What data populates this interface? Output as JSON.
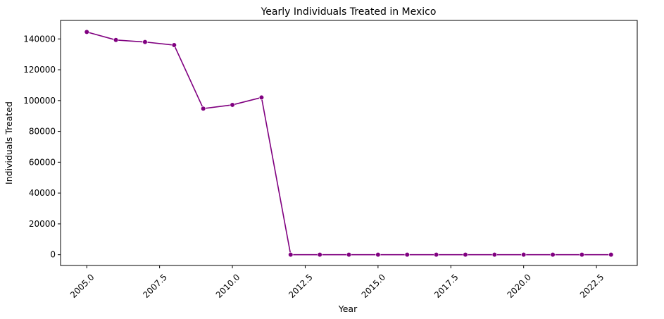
{
  "chart_data": {
    "type": "line",
    "title": "Yearly Individuals Treated in Mexico",
    "xlabel": "Year",
    "ylabel": "Individuals Treated",
    "xlim": [
      2004.1,
      2023.9
    ],
    "ylim": [
      -7000,
      152000
    ],
    "x_ticks": [
      2005.0,
      2007.5,
      2010.0,
      2012.5,
      2015.0,
      2017.5,
      2020.0,
      2022.5
    ],
    "x_tick_labels": [
      "2005.0",
      "2007.5",
      "2010.0",
      "2012.5",
      "2015.0",
      "2017.5",
      "2020.0",
      "2022.5"
    ],
    "y_ticks": [
      0,
      20000,
      40000,
      60000,
      80000,
      100000,
      120000,
      140000
    ],
    "y_tick_labels": [
      "0",
      "20000",
      "40000",
      "60000",
      "80000",
      "100000",
      "120000",
      "140000"
    ],
    "grid": false,
    "series": [
      {
        "name": "Individuals Treated",
        "color": "#800080",
        "x": [
          2005,
          2006,
          2007,
          2008,
          2009,
          2010,
          2011,
          2012,
          2013,
          2014,
          2015,
          2016,
          2017,
          2018,
          2019,
          2020,
          2021,
          2022,
          2023
        ],
        "values": [
          144500,
          139300,
          138000,
          136000,
          94800,
          97200,
          102000,
          0,
          0,
          0,
          0,
          0,
          0,
          0,
          0,
          0,
          0,
          0,
          0
        ]
      }
    ]
  }
}
